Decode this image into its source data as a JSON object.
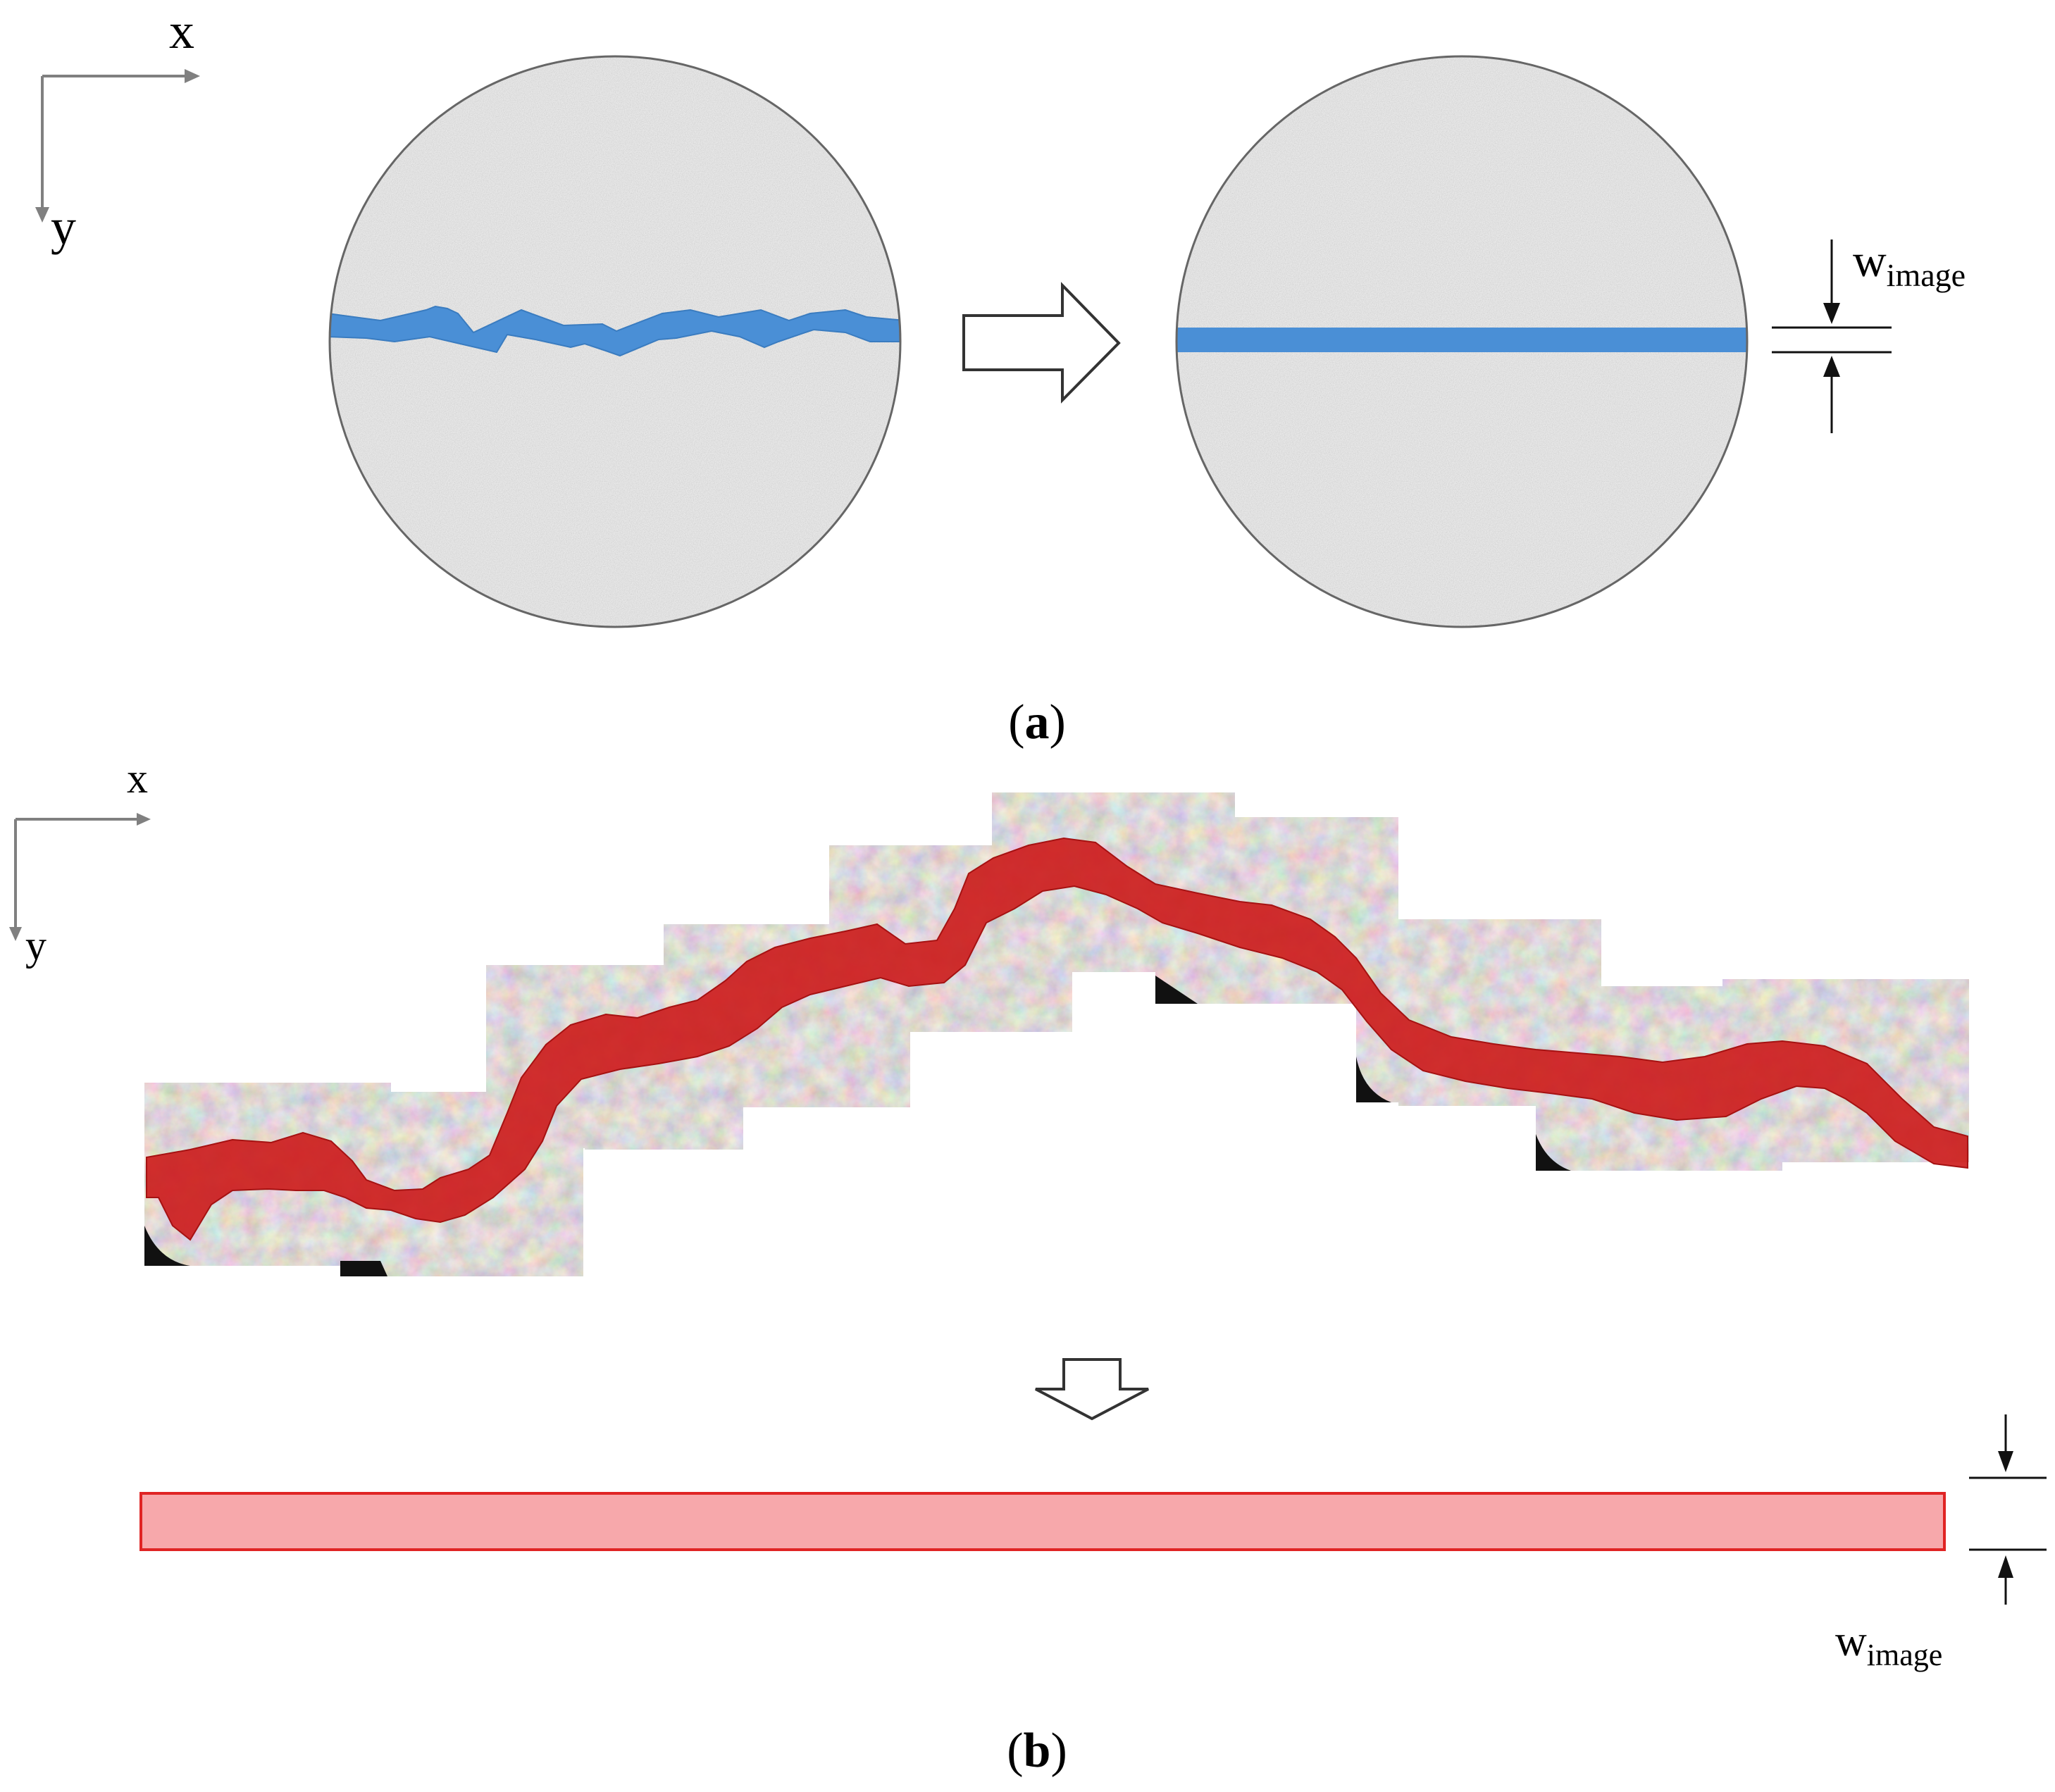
{
  "panel_a": {
    "axis_x": "x",
    "axis_y": "y",
    "width_symbol": "w",
    "width_subscript": "image",
    "caption_open": "(",
    "caption_letter": "a",
    "caption_close": ")"
  },
  "panel_b": {
    "axis_x": "x",
    "axis_y": "y",
    "width_symbol": "w",
    "width_subscript": "image",
    "caption_open": "(",
    "caption_letter": "b",
    "caption_close": ")"
  },
  "colors": {
    "axis": "#808080",
    "specimen_fill": "#e8e8e8",
    "crack_blue": "#4a8fd6",
    "crack_red": "#cc1a1a",
    "rect_fill": "#f7a8ab",
    "rect_stroke": "#e02424"
  }
}
